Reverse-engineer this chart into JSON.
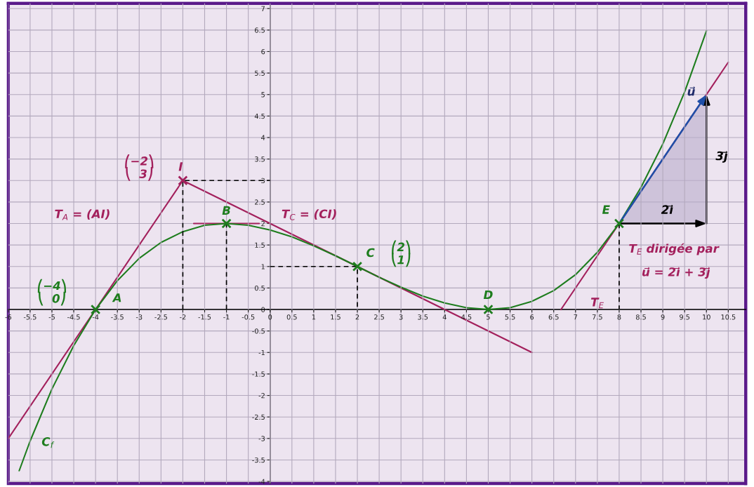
{
  "chart_data": {
    "type": "line",
    "xlim": [
      -6,
      10.9
    ],
    "ylim": [
      -4.05,
      7.12
    ],
    "xticks": [
      -6,
      -5.5,
      -5,
      -4.5,
      -4,
      -3.5,
      -3,
      -2.5,
      -2,
      -1.5,
      -1,
      -0.5,
      0,
      0.5,
      1,
      1.5,
      2,
      2.5,
      3,
      3.5,
      4,
      4.5,
      5,
      5.5,
      6,
      6.5,
      7,
      7.5,
      8,
      8.5,
      9,
      9.5,
      10,
      10.5
    ],
    "yticks": [
      -4,
      -3.5,
      -3,
      -2.5,
      -2,
      -1.5,
      -1,
      -0.5,
      0,
      0.5,
      1,
      1.5,
      2,
      2.5,
      3,
      3.5,
      4,
      4.5,
      5,
      5.5,
      6,
      6.5,
      7
    ],
    "grid": true,
    "series": [
      {
        "type": "area",
        "color": "#b9adcb",
        "x": [
          8,
          10,
          10
        ],
        "values": [
          2,
          5,
          2
        ]
      },
      {
        "color": "#000000",
        "line_style": "dashed",
        "x": [
          -2,
          -2,
          0
        ],
        "values": [
          0,
          3,
          3
        ]
      },
      {
        "color": "#000000",
        "line_style": "dashed",
        "x": [
          -1,
          -1
        ],
        "values": [
          0,
          2
        ]
      },
      {
        "color": "#000000",
        "line_style": "dashed",
        "x": [
          0,
          2,
          2
        ],
        "values": [
          1,
          1,
          0
        ]
      },
      {
        "color": "#000000",
        "line_style": "dashed",
        "x": [
          8,
          8
        ],
        "values": [
          2,
          0
        ]
      },
      {
        "color": "#a3205c",
        "line_style": "solid",
        "x": [
          -6,
          -2
        ],
        "values": [
          -3,
          3
        ]
      },
      {
        "color": "#a3205c",
        "line_style": "solid",
        "x": [
          -2,
          6
        ],
        "values": [
          3,
          -1
        ]
      },
      {
        "color": "#a3205c",
        "line_style": "solid",
        "x": [
          -1.75,
          -0.25
        ],
        "values": [
          2,
          2
        ]
      },
      {
        "color": "#a3205c",
        "line_style": "solid",
        "x": [
          6.667,
          10.5
        ],
        "values": [
          0,
          5.75
        ]
      },
      {
        "color": "#1e7d1e",
        "line_style": "solid",
        "x": [
          -5.75,
          -5.5,
          -5,
          -4.5,
          -4,
          -3.5,
          -3,
          -2.5,
          -2,
          -1.5,
          -1,
          -0.5,
          0,
          0.5,
          1,
          1.5,
          2,
          2.5,
          3,
          3.5,
          4,
          4.5,
          5,
          5.5,
          6,
          6.5,
          7,
          7.5,
          8,
          8.5,
          9,
          9.5,
          10
        ],
        "values": [
          -3.75,
          -3.06,
          -1.85,
          -0.84,
          0,
          0.67,
          1.19,
          1.56,
          1.81,
          1.96,
          2,
          1.96,
          1.85,
          1.69,
          1.48,
          1.25,
          1,
          0.75,
          0.52,
          0.31,
          0.15,
          0.04,
          0,
          0.04,
          0.19,
          0.44,
          0.81,
          1.33,
          2,
          2.84,
          3.85,
          5.06,
          6.48
        ]
      },
      {
        "type": "scatter",
        "color": "#a3205c",
        "marker": "cross",
        "x": [
          -2
        ],
        "values": [
          3
        ]
      },
      {
        "type": "scatter",
        "color": "#1e7d1e",
        "marker": "cross",
        "x": [
          -4,
          -1,
          2,
          5,
          8
        ],
        "values": [
          0,
          2,
          1,
          0,
          2
        ]
      }
    ],
    "annotations": [
      "T$_{A}$ = (AI)",
      "⎛−2⎞\n⎝  3⎠",
      {
        "text": "I",
        "x": -2,
        "y": 3
      },
      "T$_{C}$ = (CI)",
      "T$_{E}$",
      "T$_{E}$ dirigée par",
      "u⃗ = 2ı⃗ + 3ȷ⃗",
      {
        "text": "B",
        "x": -1,
        "y": 2
      },
      {
        "text": "C",
        "x": 2,
        "y": 1
      },
      "⎛2⎞\n⎝1⎠",
      "⎛−4⎞\n⎝  0⎠",
      {
        "text": "A",
        "x": -4,
        "y": 0
      },
      {
        "text": "D",
        "x": 5,
        "y": 0
      },
      {
        "text": "E",
        "x": 8,
        "y": 2
      },
      "C$_{f}$",
      {
        "text": "2ı⃗",
        "x": 10,
        "y": 2
      },
      "3ȷ⃗",
      {
        "text": "u⃗",
        "x": 10,
        "y": 5
      }
    ]
  }
}
